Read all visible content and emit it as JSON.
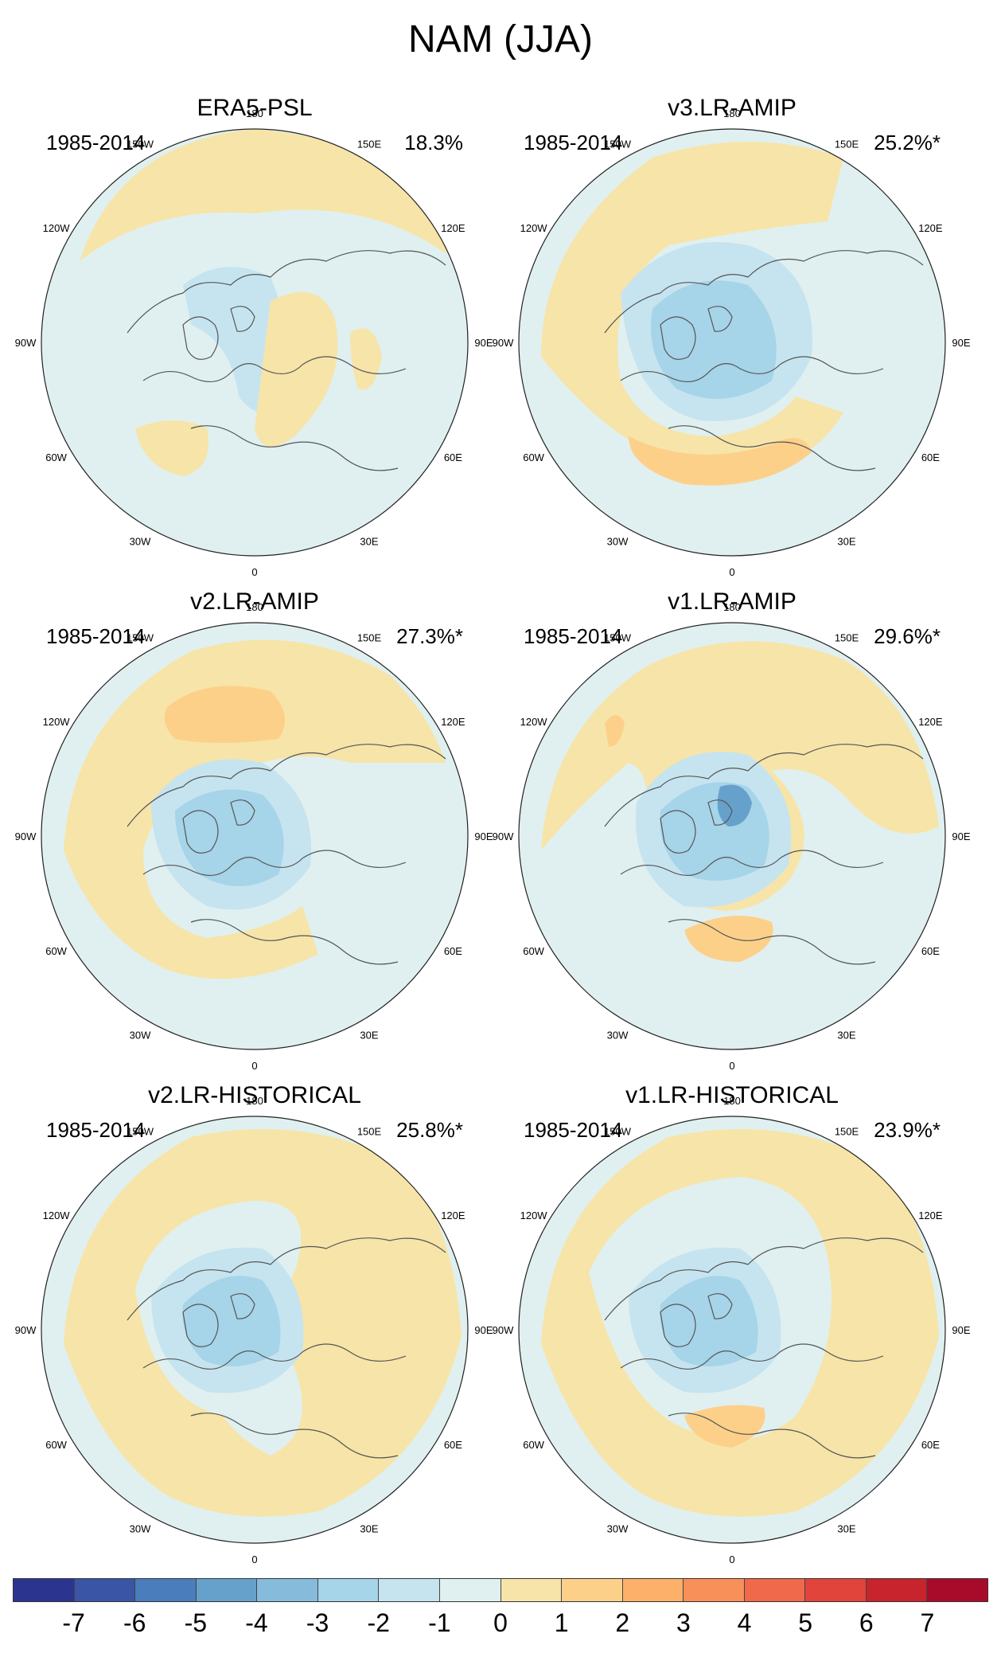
{
  "figure_title": "NAM (JJA)",
  "chart_data": {
    "type": "polar-map",
    "variable": "sea level pressure NAM pattern",
    "season": "JJA",
    "lon_labels": [
      "180",
      "150E",
      "120E",
      "90E",
      "60E",
      "30E",
      "0",
      "30W",
      "60W",
      "90W",
      "120W",
      "150W"
    ],
    "panels": [
      {
        "title": "ERA5-PSL",
        "period": "1985-2014",
        "variance": "18.3%"
      },
      {
        "title": "v3.LR-AMIP",
        "period": "1985-2014",
        "variance": "25.2%*"
      },
      {
        "title": "v2.LR-AMIP",
        "period": "1985-2014",
        "variance": "27.3%*"
      },
      {
        "title": "v1.LR-AMIP",
        "period": "1985-2014",
        "variance": "29.6%*"
      },
      {
        "title": "v2.LR-HISTORICAL",
        "period": "1985-2014",
        "variance": "25.8%*"
      },
      {
        "title": "v1.LR-HISTORICAL",
        "period": "1985-2014",
        "variance": "23.9%*"
      }
    ],
    "colorbar": {
      "labels": [
        "-7",
        "-6",
        "-5",
        "-4",
        "-3",
        "-2",
        "-1",
        "0",
        "1",
        "2",
        "3",
        "4",
        "5",
        "6",
        "7"
      ],
      "colors": [
        "#2b3590",
        "#3a55a6",
        "#4a7dbb",
        "#66a1cc",
        "#86bbdc",
        "#a6d4e8",
        "#c6e4ef",
        "#e0f0f0",
        "#f7e4a8",
        "#fdd08a",
        "#fcb06a",
        "#f8905a",
        "#f0694a",
        "#e0443a",
        "#c8242e",
        "#a80a2a"
      ]
    },
    "legend_colors": {
      "neg1": "#e0f0f0",
      "neg2": "#c6e4ef",
      "neg3": "#a6d4e8",
      "neg4": "#86bbdc",
      "neg5": "#66a1cc",
      "pos1": "#f7e4a8",
      "pos2": "#fdd08a",
      "coast": "#555555",
      "rim": "#222222"
    }
  }
}
